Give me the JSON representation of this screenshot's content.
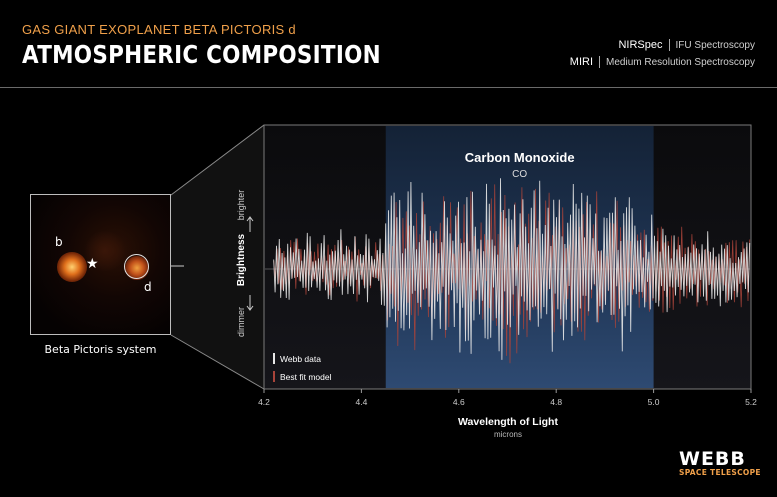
{
  "header": {
    "subtitle": "GAS GIANT EXOPLANET BETA PICTORIS d",
    "title": "ATMOSPHERIC COMPOSITION"
  },
  "instruments": [
    {
      "name": "NIRSpec",
      "desc": "IFU Spectroscopy"
    },
    {
      "name": "MIRI",
      "desc": "Medium Resolution Spectroscopy"
    }
  ],
  "thumbnail": {
    "caption": "Beta Pictoris system",
    "planet_b": "b",
    "planet_d": "d",
    "star_glyph": "★"
  },
  "branding": {
    "logo": "WEBB",
    "sub": "SPACE TELESCOPE"
  },
  "colors": {
    "subtitle": "#f0a04a",
    "webb_data": "#e8e8e8",
    "model": "#a8443a",
    "co_band": "#2e4a72"
  },
  "chart_data": {
    "type": "line",
    "xlabel": "Wavelength of Light",
    "xunit": "microns",
    "ylabel": "Brightness",
    "ylabel_top": "brighter",
    "ylabel_bottom": "dimmer",
    "xlim": [
      4.2,
      5.2
    ],
    "xticks": [
      "4.2",
      "4.4",
      "4.6",
      "4.8",
      "5.0",
      "5.2"
    ],
    "highlight": {
      "label": "Carbon Monoxide",
      "formula": "CO",
      "range": [
        4.45,
        5.0
      ]
    },
    "legend": {
      "placement": "bottom-left"
    },
    "series": [
      {
        "name": "Webb data",
        "color": "#e8e8e8",
        "x_range": [
          4.22,
          5.2
        ],
        "amplitude_profile": [
          [
            4.22,
            0.35
          ],
          [
            4.44,
            0.4
          ],
          [
            4.45,
            0.85
          ],
          [
            4.7,
            1.0
          ],
          [
            4.95,
            0.8
          ],
          [
            5.0,
            0.5
          ],
          [
            5.2,
            0.35
          ]
        ]
      },
      {
        "name": "Best fit model",
        "color": "#a8443a",
        "x_range": [
          4.22,
          5.2
        ],
        "amplitude_profile": [
          [
            4.22,
            0.3
          ],
          [
            4.44,
            0.35
          ],
          [
            4.45,
            0.7
          ],
          [
            4.7,
            0.9
          ],
          [
            4.95,
            0.75
          ],
          [
            5.0,
            0.5
          ],
          [
            5.2,
            0.4
          ]
        ]
      }
    ]
  }
}
